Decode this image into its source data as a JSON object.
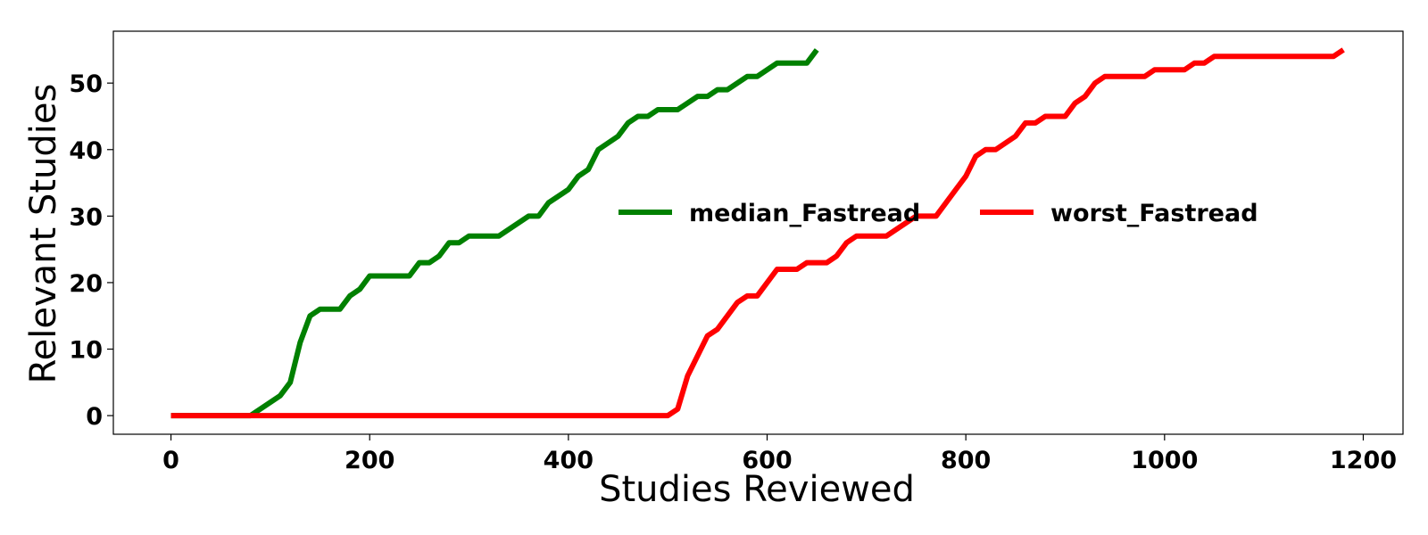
{
  "chart_data": {
    "type": "line",
    "title": "",
    "xlabel": "Studies Reviewed",
    "ylabel": "Relevant Studies",
    "xlim": [
      -58,
      1240
    ],
    "ylim": [
      -2.8,
      57.8
    ],
    "xticks": [
      0,
      200,
      400,
      600,
      800,
      1000,
      1200
    ],
    "yticks": [
      0,
      10,
      20,
      30,
      40,
      50
    ],
    "grid": false,
    "legend_position": "center-right",
    "series": [
      {
        "name": "median_Fastread",
        "color": "#008000",
        "x": [
          0,
          80,
          110,
          120,
          130,
          140,
          150,
          170,
          180,
          190,
          200,
          240,
          250,
          260,
          270,
          280,
          290,
          300,
          330,
          360,
          370,
          380,
          400,
          410,
          420,
          430,
          450,
          460,
          470,
          480,
          490,
          510,
          530,
          540,
          550,
          560,
          580,
          590,
          610,
          640,
          650
        ],
        "y": [
          0,
          0,
          3,
          5,
          11,
          15,
          16,
          16,
          18,
          19,
          21,
          21,
          23,
          23,
          24,
          26,
          26,
          27,
          27,
          30,
          30,
          32,
          34,
          36,
          37,
          40,
          42,
          44,
          45,
          45,
          46,
          46,
          48,
          48,
          49,
          49,
          51,
          51,
          53,
          53,
          55
        ]
      },
      {
        "name": "worst_Fastread",
        "color": "#ff0000",
        "x": [
          0,
          500,
          510,
          520,
          540,
          550,
          570,
          580,
          590,
          610,
          630,
          640,
          660,
          670,
          680,
          690,
          720,
          750,
          760,
          770,
          790,
          800,
          810,
          820,
          830,
          850,
          860,
          870,
          880,
          900,
          910,
          920,
          930,
          940,
          970,
          980,
          990,
          1020,
          1030,
          1040,
          1050,
          1170,
          1180
        ],
        "y": [
          0,
          0,
          1,
          6,
          12,
          13,
          17,
          18,
          18,
          22,
          22,
          23,
          23,
          24,
          26,
          27,
          27,
          30,
          30,
          30,
          34,
          36,
          39,
          40,
          40,
          42,
          44,
          44,
          45,
          45,
          47,
          48,
          50,
          51,
          51,
          51,
          52,
          52,
          53,
          53,
          54,
          54,
          55
        ]
      }
    ]
  }
}
